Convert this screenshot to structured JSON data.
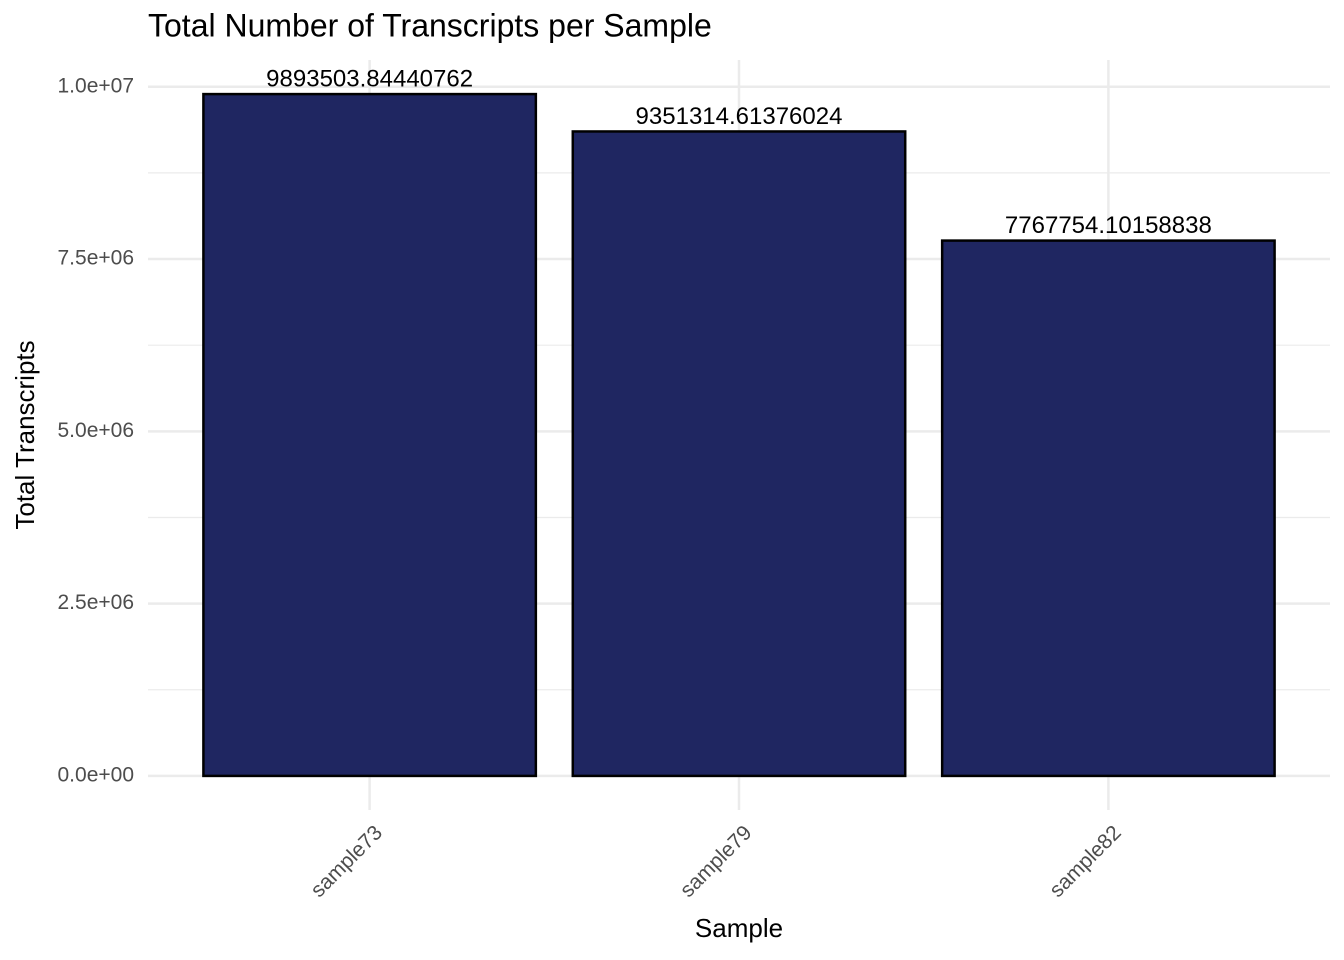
{
  "chart_data": {
    "type": "bar",
    "title": "Total Number of Transcripts per Sample",
    "xlabel": "Sample",
    "ylabel": "Total Transcripts",
    "categories": [
      "sample73",
      "sample79",
      "sample82"
    ],
    "values": [
      9893503.84440762,
      9351314.61376024,
      7767754.10158838
    ],
    "color": "#1f2661",
    "edgecolor": "#000000",
    "ylim": [
      -494675,
      10388179
    ],
    "yticks": [
      {
        "value": 0,
        "label": "0.0e+00"
      },
      {
        "value": 2500000,
        "label": "2.5e+06"
      },
      {
        "value": 5000000,
        "label": "5.0e+06"
      },
      {
        "value": 7500000,
        "label": "7.5e+06"
      },
      {
        "value": 10000000,
        "label": "1.0e+07"
      }
    ],
    "grid": true,
    "minor_grid": true
  }
}
